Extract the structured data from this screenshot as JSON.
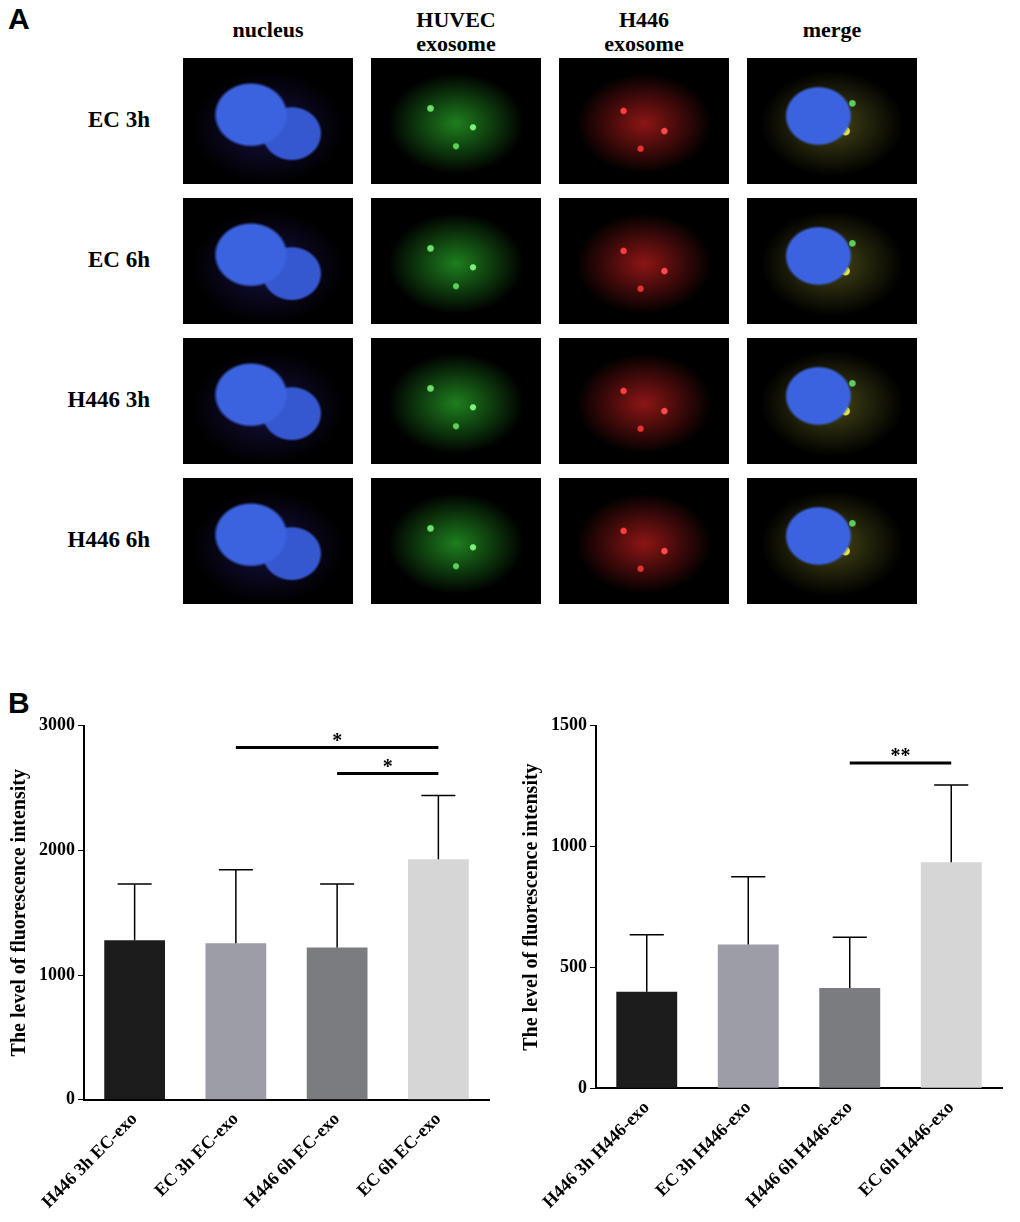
{
  "panel_a": {
    "label": "A",
    "columns": [
      "nucleus",
      "HUVEC exosome",
      "H446 exosome",
      "merge"
    ],
    "rows": [
      "EC 3h",
      "EC 6h",
      "H446 3h",
      "H446 6h"
    ]
  },
  "panel_b": {
    "label": "B"
  },
  "chart_data": [
    {
      "type": "bar",
      "ylabel": "The level of fluorescence intensity",
      "categories": [
        "H446 3h EC-exo",
        "EC 3h EC-exo",
        "H446 6h EC-exo",
        "EC 6h EC-exo"
      ],
      "values": [
        1280,
        1255,
        1220,
        1930
      ],
      "errors": [
        450,
        590,
        510,
        510
      ],
      "colors": [
        "#1c1c1c",
        "#9c9da6",
        "#7b7c80",
        "#d6d6d6"
      ],
      "ylim": [
        0,
        3000
      ],
      "yticks": [
        0,
        1000,
        2000,
        3000
      ],
      "grid": false,
      "annotations": [
        {
          "text": "*",
          "between": [
            "EC 3h EC-exo",
            "EC 6h EC-exo"
          ]
        },
        {
          "text": "*",
          "between": [
            "H446 6h EC-exo",
            "EC 6h EC-exo"
          ]
        }
      ]
    },
    {
      "type": "bar",
      "ylabel": "The level of fluorescence intensity",
      "categories": [
        "H446 3h H446-exo",
        "EC 3h H446-exo",
        "H446 6h H446-exo",
        "EC 6h H446-exo"
      ],
      "values": [
        400,
        595,
        415,
        935
      ],
      "errors": [
        235,
        280,
        210,
        320
      ],
      "colors": [
        "#1c1c1c",
        "#9c9da6",
        "#7b7c80",
        "#d6d6d6"
      ],
      "ylim": [
        0,
        1500
      ],
      "yticks": [
        0,
        500,
        1000,
        1500
      ],
      "grid": false,
      "annotations": [
        {
          "text": "**",
          "between": [
            "H446 6h H446-exo",
            "EC 6h H446-exo"
          ]
        }
      ]
    }
  ]
}
